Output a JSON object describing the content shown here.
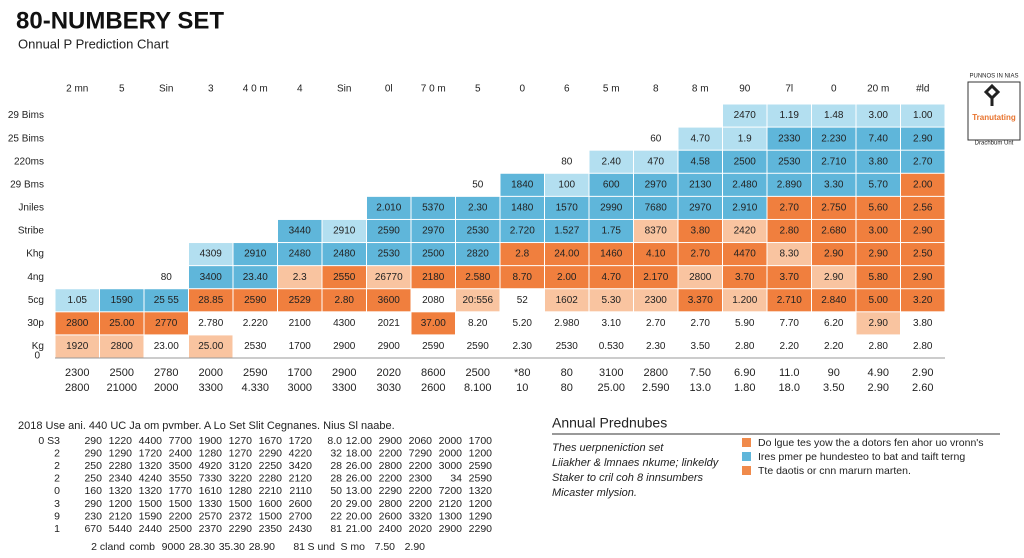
{
  "header": {
    "title": "80-NUMBERY SET",
    "subtitle": "Onnual P Prediction Chart"
  },
  "top_labels": [
    "2 mn",
    "5",
    "Sin",
    "3",
    "4 0 m",
    "4",
    "Sin",
    "0l",
    "7 0 m",
    "5",
    "0",
    "6",
    "5 m",
    "8",
    "8 m",
    "90",
    "7l",
    "0",
    "20 m",
    "#ld"
  ],
  "left_labels": [
    "29 Bims",
    "25 Bims",
    "220ms",
    "29 Bms",
    "Jniles",
    "Stribe",
    "Khg",
    "4ng",
    "5cg",
    "30p",
    "Kg"
  ],
  "baseline_label": "0",
  "columns": [
    {
      "cells": [
        "1920",
        "2800",
        "1.05"
      ],
      "fills": [
        "#f9c4a0",
        "#f07f3e",
        "#b3dff0"
      ]
    },
    {
      "cells": [
        "2800",
        "25.00",
        "1590"
      ],
      "fills": [
        "#f9c4a0",
        "#f07f3e",
        "#5fb6da"
      ]
    },
    {
      "cells": [
        "23.00",
        "2770",
        "25 55",
        "80"
      ],
      "fills": [
        "#ffffff",
        "#f07f3e",
        "#5fb6da",
        "#ffffff"
      ]
    },
    {
      "cells": [
        "25.00",
        "2.780",
        "28.85",
        "3400",
        "4309"
      ],
      "fills": [
        "#f9c4a0",
        "#ffffff",
        "#f07f3e",
        "#5fb6da",
        "#b3dff0"
      ]
    },
    {
      "cells": [
        "2530",
        "2.220",
        "2590",
        "23.40",
        "2910"
      ],
      "fills": [
        "#ffffff",
        "#ffffff",
        "#f07f3e",
        "#5fb6da",
        "#5fb6da"
      ]
    },
    {
      "cells": [
        "1700",
        "2100",
        "2529",
        "2.3",
        "2480",
        "3440"
      ],
      "fills": [
        "#ffffff",
        "#ffffff",
        "#f07f3e",
        "#f9c4a0",
        "#5fb6da",
        "#5fb6da"
      ]
    },
    {
      "cells": [
        "2900",
        "4300",
        "2.80",
        "2550",
        "2480",
        "2910"
      ],
      "fills": [
        "#ffffff",
        "#ffffff",
        "#f07f3e",
        "#f07f3e",
        "#5fb6da",
        "#b3dff0"
      ]
    },
    {
      "cells": [
        "2900",
        "2021",
        "3600",
        "26770",
        "2530",
        "2590",
        "2.010"
      ],
      "fills": [
        "#ffffff",
        "#ffffff",
        "#f07f3e",
        "#f9c4a0",
        "#5fb6da",
        "#5fb6da",
        "#5fb6da"
      ]
    },
    {
      "cells": [
        "2590",
        "37.00",
        "2080",
        "2180",
        "2500",
        "2970",
        "5370"
      ],
      "fills": [
        "#ffffff",
        "#f07f3e",
        "#ffffff",
        "#f07f3e",
        "#5fb6da",
        "#5fb6da",
        "#5fb6da"
      ]
    },
    {
      "cells": [
        "2590",
        "8.20",
        "20:556",
        "2.580",
        "2820",
        "2530",
        "2.30",
        "50"
      ],
      "fills": [
        "#ffffff",
        "#ffffff",
        "#f9c4a0",
        "#f07f3e",
        "#5fb6da",
        "#5fb6da",
        "#5fb6da",
        "#ffffff"
      ]
    },
    {
      "cells": [
        "2.30",
        "5.20",
        "52",
        "8.70",
        "2.8",
        "2.720",
        "1480",
        "1840"
      ],
      "fills": [
        "#ffffff",
        "#ffffff",
        "#ffffff",
        "#f07f3e",
        "#f07f3e",
        "#5fb6da",
        "#5fb6da",
        "#5fb6da"
      ]
    },
    {
      "cells": [
        "2530",
        "2.980",
        "1602",
        "2.00",
        "24.00",
        "1.527",
        "1570",
        "100",
        "80"
      ],
      "fills": [
        "#ffffff",
        "#ffffff",
        "#f9c4a0",
        "#f07f3e",
        "#f07f3e",
        "#5fb6da",
        "#5fb6da",
        "#b3dff0",
        "#ffffff"
      ]
    },
    {
      "cells": [
        "0.530",
        "3.10",
        "5.30",
        "4.70",
        "1460",
        "1.75",
        "2990",
        "600",
        "2.40"
      ],
      "fills": [
        "#ffffff",
        "#ffffff",
        "#f9c4a0",
        "#f07f3e",
        "#f07f3e",
        "#5fb6da",
        "#5fb6da",
        "#5fb6da",
        "#b3dff0"
      ]
    },
    {
      "cells": [
        "2.30",
        "2.70",
        "2300",
        "2.170",
        "4.10",
        "8370",
        "7680",
        "2970",
        "470",
        "60"
      ],
      "fills": [
        "#ffffff",
        "#ffffff",
        "#f9c4a0",
        "#f07f3e",
        "#f07f3e",
        "#f9c4a0",
        "#5fb6da",
        "#5fb6da",
        "#b3dff0",
        "#ffffff"
      ]
    },
    {
      "cells": [
        "3.50",
        "2.70",
        "3.370",
        "2800",
        "2.70",
        "3.80",
        "2970",
        "2130",
        "4.58",
        "4.70"
      ],
      "fills": [
        "#ffffff",
        "#ffffff",
        "#f07f3e",
        "#f9c4a0",
        "#f07f3e",
        "#f07f3e",
        "#5fb6da",
        "#5fb6da",
        "#5fb6da",
        "#b3dff0"
      ]
    },
    {
      "cells": [
        "2.80",
        "5.90",
        "1.200",
        "3.70",
        "4470",
        "2420",
        "2.910",
        "2.480",
        "2500",
        "1.9",
        "2470"
      ],
      "fills": [
        "#ffffff",
        "#ffffff",
        "#f9c4a0",
        "#f07f3e",
        "#f07f3e",
        "#f9c4a0",
        "#5fb6da",
        "#5fb6da",
        "#5fb6da",
        "#b3dff0",
        "#b3dff0"
      ]
    },
    {
      "cells": [
        "2.20",
        "7.70",
        "2.710",
        "3.70",
        "8.30",
        "2.80",
        "2.70",
        "2.890",
        "2530",
        "2330",
        "1.19"
      ],
      "fills": [
        "#ffffff",
        "#ffffff",
        "#f07f3e",
        "#f07f3e",
        "#f9c4a0",
        "#f07f3e",
        "#f07f3e",
        "#5fb6da",
        "#5fb6da",
        "#5fb6da",
        "#b3dff0"
      ]
    },
    {
      "cells": [
        "2.20",
        "6.20",
        "2.840",
        "2.90",
        "2.90",
        "2.680",
        "2.750",
        "3.30",
        "2.710",
        "2.230",
        "1.48"
      ],
      "fills": [
        "#ffffff",
        "#ffffff",
        "#f07f3e",
        "#f9c4a0",
        "#f07f3e",
        "#f07f3e",
        "#f07f3e",
        "#5fb6da",
        "#5fb6da",
        "#5fb6da",
        "#b3dff0"
      ]
    },
    {
      "cells": [
        "2.80",
        "2.90",
        "5.00",
        "5.80",
        "2.90",
        "3.00",
        "5.60",
        "5.70",
        "3.80",
        "7.40",
        "3.00"
      ],
      "fills": [
        "#ffffff",
        "#f9c4a0",
        "#f07f3e",
        "#f07f3e",
        "#f07f3e",
        "#f07f3e",
        "#f07f3e",
        "#5fb6da",
        "#5fb6da",
        "#5fb6da",
        "#b3dff0"
      ]
    },
    {
      "cells": [
        "2.80",
        "3.80",
        "3.20",
        "2.90",
        "2.50",
        "2.90",
        "2.56",
        "2.00",
        "2.70",
        "2.90",
        "1.00"
      ],
      "fills": [
        "#ffffff",
        "#ffffff",
        "#f07f3e",
        "#f07f3e",
        "#f07f3e",
        "#f07f3e",
        "#f07f3e",
        "#f07f3e",
        "#5fb6da",
        "#5fb6da",
        "#b3dff0"
      ]
    }
  ],
  "bottom_rows": [
    [
      "2300",
      "2500",
      "2780",
      "2000",
      "2590",
      "1700",
      "2900",
      "2020",
      "8600",
      "2500",
      "*80",
      "80",
      "3100",
      "2800",
      "7.50",
      "6.90",
      "11.0",
      "90",
      "4.90",
      "2.90"
    ],
    [
      "2800",
      "21000",
      "2000",
      "3300",
      "4.330",
      "3000",
      "3300",
      "3030",
      "2600",
      "8.100",
      "10",
      "80",
      "25.00",
      "2.590",
      "13.0",
      "1.80",
      "18.0",
      "3.50",
      "2.90",
      "2.60"
    ]
  ],
  "table": {
    "caption": "2018 Use ani. 440 UC Ja om pvmber. A Lo Set Slit Cegnanes. Nius Sl naabe.",
    "rows": [
      [
        "0 S3",
        "290",
        "1220",
        "4400",
        "7700",
        "1900",
        "1270",
        "1670",
        "1720",
        "8.0",
        "12.00",
        "2900",
        "2060",
        "2000",
        "1700"
      ],
      [
        "2",
        "290",
        "1290",
        "1720",
        "2400",
        "1280",
        "1270",
        "2290",
        "4220",
        "32",
        "18.00",
        "2200",
        "7290",
        "2000",
        "1200"
      ],
      [
        "2",
        "250",
        "2280",
        "1320",
        "3500",
        "4920",
        "3120",
        "2250",
        "3420",
        "28",
        "26.00",
        "2800",
        "2200",
        "3000",
        "2590"
      ],
      [
        "2",
        "250",
        "2340",
        "4240",
        "3550",
        "7330",
        "3220",
        "2280",
        "2120",
        "28",
        "26.00",
        "2200",
        "2300",
        "34",
        "2590"
      ],
      [
        "0",
        "160",
        "1320",
        "1320",
        "1770",
        "1610",
        "1280",
        "2210",
        "2110",
        "50",
        "13.00",
        "2290",
        "2200",
        "7200",
        "1320"
      ],
      [
        "3",
        "290",
        "1200",
        "1500",
        "1500",
        "1330",
        "1500",
        "1600",
        "2600",
        "20",
        "29.00",
        "2800",
        "2200",
        "2120",
        "1200"
      ],
      [
        "9",
        "230",
        "2120",
        "1590",
        "2200",
        "2570",
        "2372",
        "1500",
        "2700",
        "22",
        "20.00",
        "2600",
        "3320",
        "1300",
        "1290"
      ],
      [
        "1",
        "670",
        "5440",
        "2440",
        "2500",
        "2370",
        "2290",
        "2350",
        "2430",
        "81",
        "21.00",
        "2400",
        "2020",
        "2900",
        "2290"
      ]
    ],
    "footer": [
      "2 cland",
      "comb",
      "9000",
      "28.30",
      "35.30",
      "28.90",
      "81",
      "S und",
      "S mo",
      "7.50",
      "2.90"
    ]
  },
  "notes": {
    "title": "Annual Prednubes",
    "lines": [
      "Thes uerpneniction set",
      "Liiakher & lmnaes nkume; linkeldy",
      "Staker to cril coh 8 innsumbers",
      "Micaster mlysion."
    ]
  },
  "legend": [
    {
      "color": "#f08a4b",
      "label": "Do lgue tes yow the a dotors fen ahor uo vronn's"
    },
    {
      "color": "#5fb6da",
      "label": "Ires pmer pe hundesteo to bat and taift terng"
    },
    {
      "color": "#f08a4b",
      "label": "Tte daotis or cnn marurn marten."
    }
  ],
  "logo": {
    "top": "PUNNOS IN NIAS",
    "center": "Tranutating",
    "bottom": "Drachbum Unt"
  }
}
